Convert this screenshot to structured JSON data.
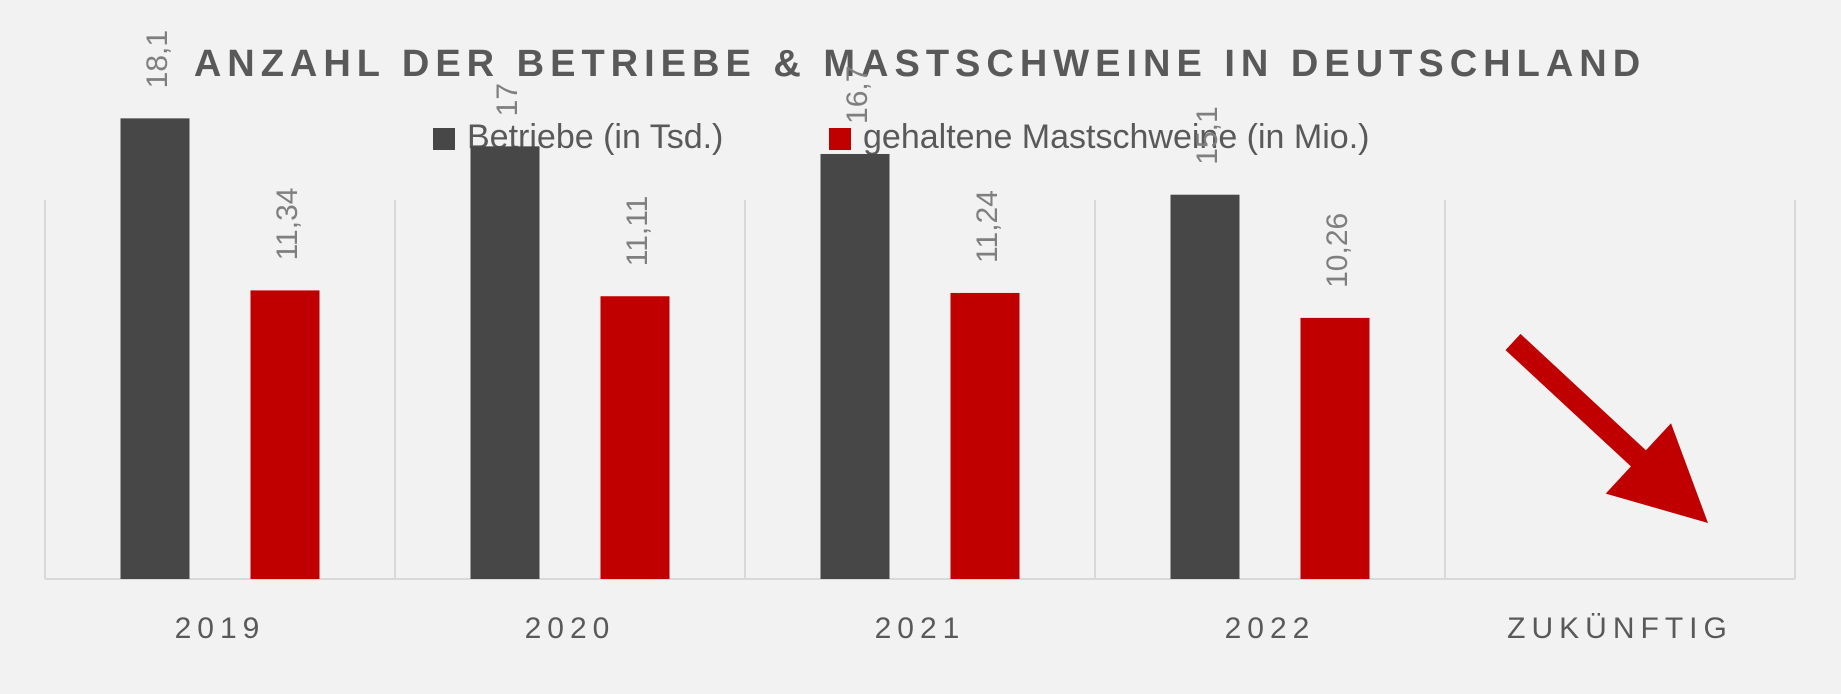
{
  "chart_data": {
    "type": "bar",
    "title": "ANZAHL DER BETRIEBE & MASTSCHWEINE IN DEUTSCHLAND",
    "categories": [
      "2019",
      "2020",
      "2021",
      "2022",
      "ZUKÜNFTIG"
    ],
    "series": [
      {
        "name": "Betriebe (in Tsd.)",
        "color": "#474747",
        "values": [
          18.1,
          17,
          16.7,
          15.1,
          null
        ],
        "labels": [
          "18,1",
          "17",
          "16,7",
          "15,1",
          ""
        ]
      },
      {
        "name": "gehaltene Mastschweine (in Mio.)",
        "color": "#c00000",
        "values": [
          11.34,
          11.11,
          11.24,
          10.26,
          null
        ],
        "labels": [
          "11,34",
          "11,11",
          "11,24",
          "10,26",
          ""
        ]
      }
    ],
    "ylim": [
      0,
      20
    ],
    "grid": false,
    "legend_position": "top",
    "annotation": {
      "type": "arrow",
      "category": "ZUKÜNFTIG",
      "direction": "down-right",
      "color": "#c00000",
      "meaning": "decreasing trend"
    }
  },
  "colors": {
    "background": "#f2f2f2",
    "title": "#595959",
    "text": "#595959",
    "value_label": "#7f7f7f",
    "axis": "#d9d9d9"
  }
}
